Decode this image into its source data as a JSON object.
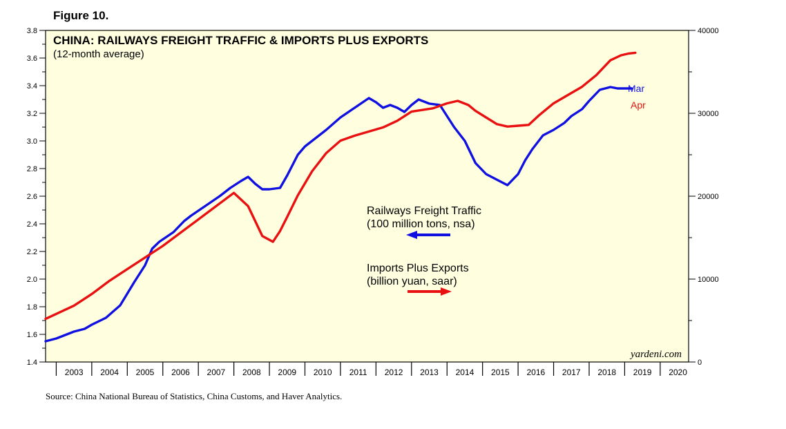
{
  "figure_label": "Figure 10.",
  "source": "Source: China National Bureau of Statistics, China Customs, and Haver Analytics.",
  "colors": {
    "plot_bg": "#FFFFE0",
    "railways": "#1010E0",
    "trade": "#E81010",
    "frame": "#000000"
  },
  "chart_data": {
    "type": "line",
    "title": "CHINA: RAILWAYS FREIGHT TRAFFIC & IMPORTS PLUS EXPORTS",
    "subtitle": "(12-month average)",
    "watermark": "yardeni.com",
    "x_range": [
      2002.7,
      2020.8
    ],
    "x_tick_labels": [
      "2003",
      "2004",
      "2005",
      "2006",
      "2007",
      "2008",
      "2009",
      "2010",
      "2011",
      "2012",
      "2013",
      "2014",
      "2015",
      "2016",
      "2017",
      "2018",
      "2019",
      "2020"
    ],
    "y_left": {
      "range": [
        1.4,
        3.8
      ],
      "tick_labels": [
        "1.4",
        "1.6",
        "1.8",
        "2.0",
        "2.2",
        "2.4",
        "2.6",
        "2.8",
        "3.0",
        "3.2",
        "3.4",
        "3.6",
        "3.8"
      ]
    },
    "y_right": {
      "range": [
        0,
        40000
      ],
      "tick_labels": [
        "0",
        "10000",
        "20000",
        "30000",
        "40000"
      ]
    },
    "series": [
      {
        "name": "Railways Freight Traffic",
        "units": "(100 million tons, nsa)",
        "axis": "left",
        "end_label": "Mar",
        "x": [
          2002.7,
          2003.0,
          2003.5,
          2003.8,
          2004.0,
          2004.4,
          2004.8,
          2005.2,
          2005.5,
          2005.7,
          2005.9,
          2006.3,
          2006.6,
          2006.8,
          2007.2,
          2007.6,
          2007.9,
          2008.2,
          2008.4,
          2008.6,
          2008.8,
          2009.0,
          2009.3,
          2009.5,
          2009.8,
          2010.0,
          2010.3,
          2010.6,
          2011.0,
          2011.4,
          2011.8,
          2012.0,
          2012.2,
          2012.4,
          2012.6,
          2012.8,
          2013.0,
          2013.2,
          2013.5,
          2013.8,
          2014.0,
          2014.2,
          2014.5,
          2014.8,
          2015.1,
          2015.4,
          2015.7,
          2016.0,
          2016.2,
          2016.4,
          2016.7,
          2017.0,
          2017.3,
          2017.5,
          2017.8,
          2018.0,
          2018.3,
          2018.6,
          2018.8,
          2019.0,
          2019.2
        ],
        "values": [
          1.55,
          1.57,
          1.62,
          1.64,
          1.67,
          1.72,
          1.81,
          1.98,
          2.1,
          2.22,
          2.27,
          2.34,
          2.42,
          2.46,
          2.53,
          2.6,
          2.66,
          2.71,
          2.74,
          2.69,
          2.65,
          2.65,
          2.66,
          2.75,
          2.9,
          2.96,
          3.02,
          3.08,
          3.17,
          3.24,
          3.31,
          3.28,
          3.24,
          3.26,
          3.24,
          3.21,
          3.26,
          3.3,
          3.27,
          3.26,
          3.18,
          3.1,
          3.0,
          2.84,
          2.76,
          2.72,
          2.68,
          2.76,
          2.86,
          2.94,
          3.04,
          3.08,
          3.13,
          3.18,
          3.23,
          3.29,
          3.37,
          3.39,
          3.38,
          3.38,
          3.38
        ]
      },
      {
        "name": "Imports Plus Exports",
        "units": "(billion yuan, saar)",
        "axis": "right",
        "end_label": "Apr",
        "x": [
          2002.7,
          2003.0,
          2003.5,
          2004.0,
          2004.5,
          2005.0,
          2005.5,
          2006.0,
          2006.5,
          2007.0,
          2007.5,
          2008.0,
          2008.4,
          2008.8,
          2009.1,
          2009.3,
          2009.5,
          2009.8,
          2010.2,
          2010.6,
          2011.0,
          2011.4,
          2011.8,
          2012.2,
          2012.6,
          2013.0,
          2013.3,
          2013.6,
          2013.8,
          2014.0,
          2014.3,
          2014.6,
          2014.8,
          2015.1,
          2015.4,
          2015.7,
          2016.0,
          2016.3,
          2016.6,
          2017.0,
          2017.4,
          2017.8,
          2018.2,
          2018.6,
          2018.9,
          2019.1,
          2019.3
        ],
        "values": [
          5200,
          5800,
          6800,
          8200,
          9800,
          11200,
          12600,
          14000,
          15600,
          17200,
          18800,
          20400,
          18800,
          15200,
          14500,
          15800,
          17500,
          20100,
          23000,
          25200,
          26700,
          27300,
          27800,
          28300,
          29100,
          30200,
          30400,
          30600,
          30900,
          31200,
          31500,
          31000,
          30300,
          29500,
          28700,
          28400,
          28500,
          28600,
          29800,
          31200,
          32200,
          33200,
          34600,
          36400,
          37000,
          37200,
          37300
        ]
      }
    ]
  }
}
